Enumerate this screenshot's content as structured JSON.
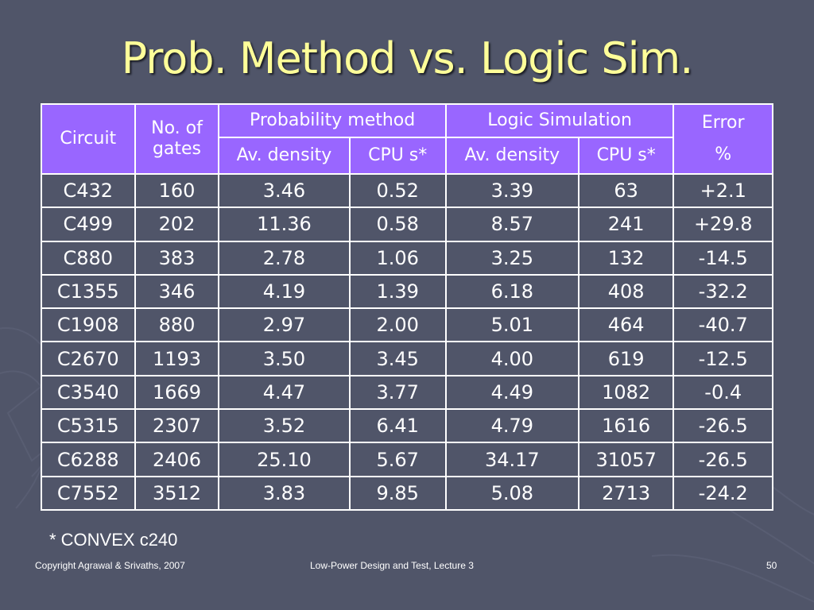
{
  "title": "Prob. Method vs. Logic Sim.",
  "table": {
    "headers": {
      "circuit": "Circuit",
      "gates": "No. of gates",
      "prob_method": "Probability method",
      "logic_sim": "Logic Simulation",
      "error": "Error %",
      "av_density": "Av. density",
      "cpu": "CPU s*"
    },
    "rows": [
      [
        "C432",
        "160",
        "3.46",
        "0.52",
        "3.39",
        "63",
        "+2.1"
      ],
      [
        "C499",
        "202",
        "11.36",
        "0.58",
        "8.57",
        "241",
        "+29.8"
      ],
      [
        "C880",
        "383",
        "2.78",
        "1.06",
        "3.25",
        "132",
        "-14.5"
      ],
      [
        "C1355",
        "346",
        "4.19",
        "1.39",
        "6.18",
        "408",
        "-32.2"
      ],
      [
        "C1908",
        "880",
        "2.97",
        "2.00",
        "5.01",
        "464",
        "-40.7"
      ],
      [
        "C2670",
        "1193",
        "3.50",
        "3.45",
        "4.00",
        "619",
        "-12.5"
      ],
      [
        "C3540",
        "1669",
        "4.47",
        "3.77",
        "4.49",
        "1082",
        "-0.4"
      ],
      [
        "C5315",
        "2307",
        "3.52",
        "6.41",
        "4.79",
        "1616",
        "-26.5"
      ],
      [
        "C6288",
        "2406",
        "25.10",
        "5.67",
        "34.17",
        "31057",
        "-26.5"
      ],
      [
        "C7552",
        "3512",
        "3.83",
        "9.85",
        "5.08",
        "2713",
        "-24.2"
      ]
    ]
  },
  "footnote": "* CONVEX c240",
  "footer": {
    "left": "Copyright Agrawal & Srivaths, 2007",
    "center": "Low-Power Design and Test, Lecture 3",
    "page": "50"
  }
}
